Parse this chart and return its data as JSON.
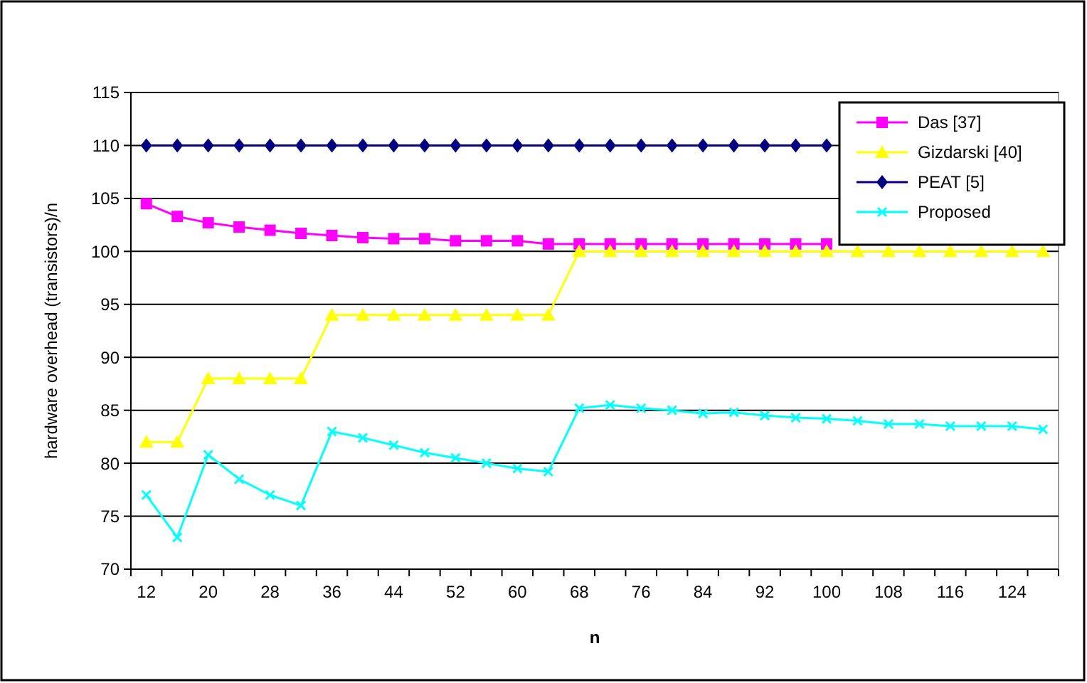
{
  "chart_data": {
    "type": "line",
    "xlabel": "n",
    "ylabel": "hardware overhead (transistors)/n",
    "categories": [
      "12",
      null,
      "20",
      null,
      "28",
      null,
      "36",
      null,
      "44",
      null,
      "52",
      null,
      "60",
      null,
      "68",
      null,
      "76",
      null,
      "84",
      null,
      "92",
      null,
      "100",
      null,
      "108",
      null,
      "116",
      null,
      "124",
      null
    ],
    "ylim": [
      70,
      115
    ],
    "yticks": [
      70,
      75,
      80,
      85,
      90,
      95,
      100,
      105,
      110,
      115
    ],
    "grid": "y",
    "legend": "top right",
    "series": [
      {
        "name": "Das [37]",
        "color": "#ff00ff",
        "marker": "square",
        "values": [
          104.5,
          103.3,
          102.7,
          102.3,
          102.0,
          101.7,
          101.5,
          101.3,
          101.2,
          101.2,
          101.0,
          101.0,
          101.0,
          100.7,
          100.7,
          100.7,
          100.7,
          100.7,
          100.7,
          100.7,
          100.7,
          100.7,
          100.7,
          null,
          null,
          null,
          null,
          null,
          null,
          null
        ]
      },
      {
        "name": "Gizdarski [40]",
        "color": "#ffff00",
        "marker": "triangle",
        "values": [
          82,
          82,
          88,
          88,
          88,
          88,
          94,
          94,
          94,
          94,
          94,
          94,
          94,
          94,
          100,
          100,
          100,
          100,
          100,
          100,
          100,
          100,
          100,
          100,
          100,
          100,
          100,
          100,
          100,
          100
        ]
      },
      {
        "name": "PEAT [5]",
        "color": "#000080",
        "marker": "diamond",
        "values": [
          110,
          110,
          110,
          110,
          110,
          110,
          110,
          110,
          110,
          110,
          110,
          110,
          110,
          110,
          110,
          110,
          110,
          110,
          110,
          110,
          110,
          110,
          110,
          null,
          null,
          null,
          null,
          null,
          null,
          null
        ]
      },
      {
        "name": "Proposed",
        "color": "#00ffff",
        "marker": "cross",
        "values": [
          77,
          73,
          80.8,
          78.5,
          77,
          76,
          83,
          82.4,
          81.7,
          81,
          80.5,
          80,
          79.5,
          79.2,
          85.2,
          85.5,
          85.2,
          85,
          84.7,
          84.8,
          84.5,
          84.3,
          84.2,
          84,
          83.7,
          83.7,
          83.5,
          83.5,
          83.5,
          83.2
        ]
      }
    ]
  }
}
